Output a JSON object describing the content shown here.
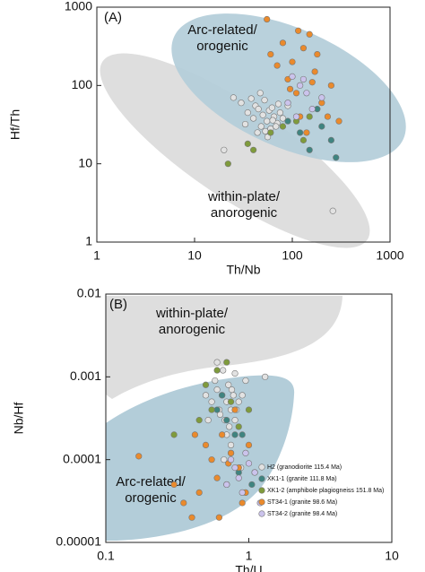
{
  "chart_data": [
    {
      "type": "scatter",
      "x_label": "Th/Nb",
      "y_label": "Hf/Th",
      "log_x": true,
      "log_y": true,
      "annotations": [
        "(A)",
        "Arc-related/",
        "orogenic",
        "within-plate/",
        "anorogenic"
      ],
      "xlim": [
        1,
        1000
      ],
      "xticks": [
        1,
        10,
        100,
        1000
      ],
      "ylim": [
        1,
        1000
      ],
      "yticks": [
        1,
        10,
        100,
        1000
      ],
      "series": [
        {
          "color": "#e2e2e2",
          "x": [
            30,
            35,
            40,
            42,
            45,
            48,
            50,
            52,
            55,
            58,
            60,
            62,
            65,
            70,
            72,
            75,
            38,
            44,
            56,
            68,
            80,
            25,
            33,
            47,
            53,
            63,
            90,
            20,
            260
          ],
          "values": [
            60,
            45,
            38,
            55,
            50,
            30,
            42,
            65,
            35,
            48,
            28,
            52,
            40,
            33,
            58,
            45,
            68,
            25,
            22,
            30,
            38,
            70,
            32,
            80,
            26,
            36,
            55,
            15,
            2.5
          ]
        },
        {
          "color": "#3f8480",
          "x": [
            120,
            150,
            200,
            250,
            280,
            180,
            90
          ],
          "values": [
            25,
            15,
            30,
            20,
            12,
            50,
            35
          ]
        },
        {
          "color": "#7f9b3c",
          "x": [
            22,
            35,
            60,
            80,
            110,
            130,
            150,
            40
          ],
          "values": [
            10,
            18,
            25,
            30,
            35,
            20,
            40,
            15
          ]
        },
        {
          "color": "#ea8a2c",
          "x": [
            55,
            60,
            80,
            90,
            100,
            110,
            120,
            130,
            150,
            170,
            200,
            250,
            300,
            140,
            70,
            95,
            180,
            230,
            115,
            160
          ],
          "values": [
            700,
            250,
            350,
            120,
            200,
            80,
            40,
            300,
            450,
            150,
            60,
            100,
            35,
            25,
            180,
            90,
            250,
            40,
            500,
            110
          ]
        },
        {
          "color": "#cbc3ec",
          "x": [
            90,
            100,
            120,
            140,
            160,
            200,
            110,
            130
          ],
          "values": [
            60,
            130,
            100,
            80,
            50,
            70,
            40,
            120
          ]
        }
      ]
    },
    {
      "type": "scatter",
      "x_label": "Th/U",
      "y_label": "Nb/Hf",
      "log_x": true,
      "log_y": true,
      "legend": "lower right",
      "annotations": [
        "(B)",
        "within-plate/",
        "anorogenic",
        "Arc-related/",
        "orogenic"
      ],
      "xlim": [
        0.1,
        10
      ],
      "xticks": [
        0.1,
        1,
        10
      ],
      "ylim": [
        1e-05,
        0.01
      ],
      "yticks": [
        1e-05,
        0.0001,
        0.001,
        0.01
      ],
      "series": [
        {
          "name": "H2 (granodiorite 115.4 Ma)",
          "color": "#e2e2e2",
          "x": [
            0.5,
            0.55,
            0.6,
            0.62,
            0.65,
            0.68,
            0.7,
            0.72,
            0.75,
            0.78,
            0.8,
            0.85,
            0.58,
            0.63,
            0.66,
            0.73,
            0.76,
            0.82,
            0.52,
            0.9,
            0.6,
            0.7,
            0.8,
            0.75,
            0.95,
            1.3,
            0.67,
            0.88
          ],
          "values": [
            0.0006,
            0.0005,
            0.0007,
            0.0004,
            0.0006,
            0.0003,
            0.0005,
            0.0008,
            0.0004,
            0.0006,
            0.0003,
            0.0005,
            0.0009,
            0.00035,
            0.0012,
            0.00025,
            0.0007,
            0.0004,
            0.0003,
            0.0006,
            0.0015,
            0.0002,
            0.0011,
            0.00015,
            0.0009,
            0.001,
            0.0001,
            8e-05
          ]
        },
        {
          "name": "XK1-1 (granite 111.8 Ma)",
          "color": "#3f8480",
          "x": [
            0.6,
            0.7,
            0.75,
            0.8,
            0.85,
            0.9,
            0.65,
            1.05
          ],
          "values": [
            0.0004,
            0.0003,
            0.00012,
            0.0002,
            7e-05,
            0.0002,
            0.0006,
            5e-05
          ]
        },
        {
          "name": "XK1-2 (amphibole plagiogneiss 151.8 Ma)",
          "color": "#7f9b3c",
          "x": [
            0.3,
            0.45,
            0.5,
            0.6,
            0.7,
            0.85,
            1.0,
            0.55,
            0.75
          ],
          "values": [
            0.0002,
            0.0003,
            0.0008,
            0.0012,
            0.0015,
            0.00025,
            0.0004,
            0.0004,
            0.0005
          ]
        },
        {
          "name": "ST34-1 (granite 98.6 Ma)",
          "color": "#ea8a2c",
          "x": [
            0.17,
            0.3,
            0.35,
            0.4,
            0.45,
            0.5,
            0.55,
            0.6,
            0.65,
            0.7,
            0.75,
            0.8,
            0.85,
            0.9,
            1.0,
            1.1,
            0.42,
            0.62,
            0.72,
            0.95
          ],
          "values": [
            0.00011,
            5e-05,
            3e-05,
            2e-05,
            4e-05,
            0.00015,
            0.0001,
            6e-05,
            0.0002,
            5e-05,
            0.00012,
            0.0004,
            8e-05,
            3e-05,
            0.00015,
            7e-05,
            0.0002,
            2e-05,
            9e-05,
            4e-05
          ]
        },
        {
          "name": "ST34-2 (granite 98.4 Ma)",
          "color": "#cbc3ec",
          "x": [
            0.75,
            0.8,
            0.85,
            0.9,
            1.0,
            1.2,
            0.95,
            0.7,
            1.1
          ],
          "values": [
            0.0001,
            8e-05,
            6e-05,
            4e-05,
            9e-05,
            3e-05,
            0.00012,
            5e-05,
            7e-05
          ]
        }
      ]
    }
  ]
}
